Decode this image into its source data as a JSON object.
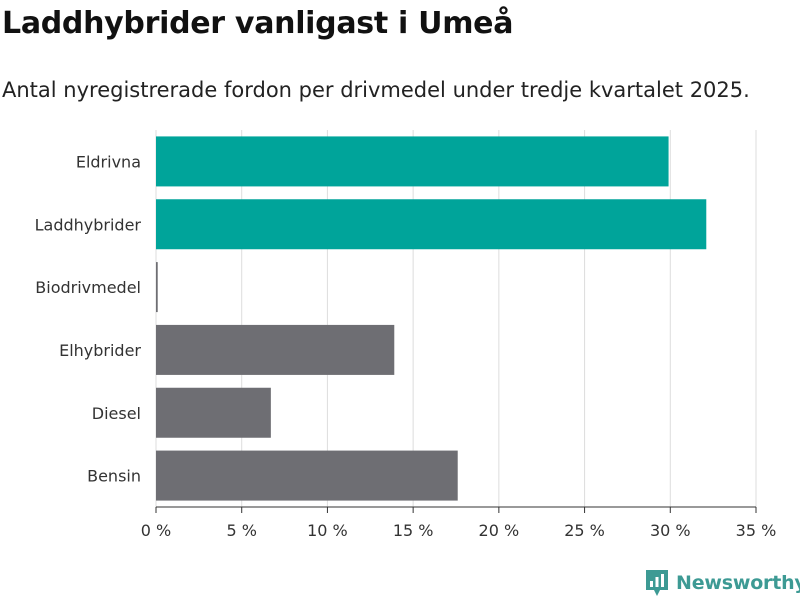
{
  "title": "Laddhybrider vanligast i Umeå",
  "subtitle": "Antal nyregistrerade fordon per drivmedel under tredje kvartalet 2025.",
  "brand": {
    "name": "Newsworthy",
    "icon": "newsworthy-logo-icon"
  },
  "colors": {
    "highlight": "#00a49a",
    "neutral": "#6e6e73",
    "grid": "#dddddd",
    "axis": "#333333"
  },
  "chart_data": {
    "type": "bar",
    "orientation": "horizontal",
    "title": "Laddhybrider vanligast i Umeå",
    "subtitle": "Antal nyregistrerade fordon per drivmedel under tredje kvartalet 2025.",
    "xlabel": "",
    "ylabel": "",
    "categories": [
      "Eldrivna",
      "Laddhybrider",
      "Biodrivmedel",
      "Elhybrider",
      "Diesel",
      "Bensin"
    ],
    "values": [
      29.9,
      32.1,
      0.1,
      13.9,
      6.7,
      17.6
    ],
    "highlighted": [
      true,
      true,
      false,
      false,
      false,
      false
    ],
    "unit": "%",
    "xlim": [
      0,
      35
    ],
    "xticks": [
      0,
      5,
      10,
      15,
      20,
      25,
      30,
      35
    ],
    "xtick_labels": [
      "0 %",
      "5 %",
      "10 %",
      "15 %",
      "20 %",
      "25 %",
      "30 %",
      "35 %"
    ],
    "grid": true
  }
}
